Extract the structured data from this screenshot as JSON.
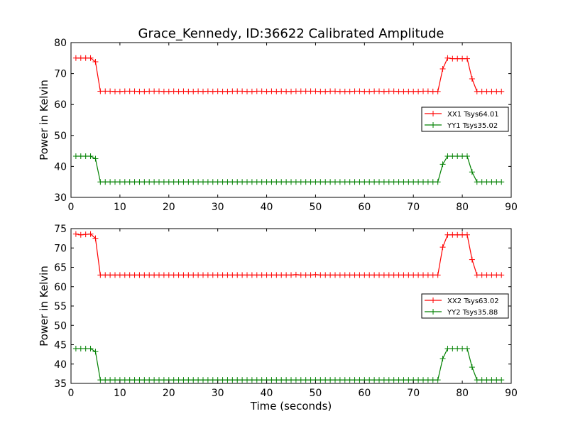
{
  "title": "Grace_Kennedy, ID:36622 Calibrated Amplitude",
  "chart_data": [
    {
      "type": "line",
      "xlabel": "",
      "ylabel": "Power in Kelvin",
      "xlim": [
        0,
        90
      ],
      "ylim": [
        30,
        80
      ],
      "xticks": [
        0,
        10,
        20,
        30,
        40,
        50,
        60,
        70,
        80,
        90
      ],
      "yticks": [
        30,
        40,
        50,
        60,
        70,
        80
      ],
      "grid": false,
      "legend_position": "right",
      "series": [
        {
          "name": "XX1 Tsys64.01",
          "color": "#ff0000",
          "x": [
            1,
            2,
            3,
            4,
            5,
            6,
            7,
            8,
            9,
            10,
            11,
            12,
            13,
            14,
            15,
            16,
            17,
            18,
            19,
            20,
            21,
            22,
            23,
            24,
            25,
            26,
            27,
            28,
            29,
            30,
            31,
            32,
            33,
            34,
            35,
            36,
            37,
            38,
            39,
            40,
            41,
            42,
            43,
            44,
            45,
            46,
            47,
            48,
            49,
            50,
            51,
            52,
            53,
            54,
            55,
            56,
            57,
            58,
            59,
            60,
            61,
            62,
            63,
            64,
            65,
            66,
            67,
            68,
            69,
            70,
            71,
            72,
            73,
            74,
            75,
            76,
            77,
            78,
            79,
            80,
            81,
            82,
            83,
            84,
            85,
            86,
            87,
            88
          ],
          "y": [
            75.0,
            75.0,
            75.0,
            75.0,
            73.8,
            64.3,
            64.3,
            64.3,
            64.2,
            64.2,
            64.3,
            64.3,
            64.3,
            64.2,
            64.2,
            64.3,
            64.3,
            64.3,
            64.2,
            64.2,
            64.3,
            64.2,
            64.3,
            64.2,
            64.2,
            64.3,
            64.2,
            64.3,
            64.2,
            64.3,
            64.2,
            64.2,
            64.3,
            64.3,
            64.3,
            64.2,
            64.2,
            64.3,
            64.3,
            64.2,
            64.3,
            64.2,
            64.3,
            64.2,
            64.2,
            64.3,
            64.3,
            64.3,
            64.3,
            64.3,
            64.2,
            64.2,
            64.3,
            64.3,
            64.2,
            64.2,
            64.2,
            64.3,
            64.3,
            64.2,
            64.2,
            64.3,
            64.3,
            64.2,
            64.3,
            64.3,
            64.2,
            64.2,
            64.2,
            64.2,
            64.2,
            64.3,
            64.3,
            64.2,
            64.2,
            71.5,
            75.0,
            74.8,
            74.8,
            74.8,
            74.8,
            68.3,
            64.2,
            64.2,
            64.2,
            64.2,
            64.2,
            64.2
          ]
        },
        {
          "name": "YY1 Tsys35.02",
          "color": "#008000",
          "x": [
            1,
            2,
            3,
            4,
            5,
            6,
            7,
            8,
            9,
            10,
            11,
            12,
            13,
            14,
            15,
            16,
            17,
            18,
            19,
            20,
            21,
            22,
            23,
            24,
            25,
            26,
            27,
            28,
            29,
            30,
            31,
            32,
            33,
            34,
            35,
            36,
            37,
            38,
            39,
            40,
            41,
            42,
            43,
            44,
            45,
            46,
            47,
            48,
            49,
            50,
            51,
            52,
            53,
            54,
            55,
            56,
            57,
            58,
            59,
            60,
            61,
            62,
            63,
            64,
            65,
            66,
            67,
            68,
            69,
            70,
            71,
            72,
            73,
            74,
            75,
            76,
            77,
            78,
            79,
            80,
            81,
            82,
            83,
            84,
            85,
            86,
            87,
            88
          ],
          "y": [
            43.3,
            43.3,
            43.3,
            43.3,
            42.5,
            35.0,
            35.0,
            35.0,
            35.0,
            35.0,
            35.0,
            35.0,
            35.0,
            35.0,
            35.0,
            35.0,
            35.0,
            35.0,
            35.0,
            35.0,
            35.0,
            35.0,
            35.0,
            35.0,
            35.0,
            35.0,
            35.0,
            35.0,
            35.0,
            35.0,
            35.0,
            35.0,
            35.0,
            35.0,
            35.0,
            35.0,
            35.0,
            35.0,
            35.0,
            35.0,
            35.0,
            35.0,
            35.0,
            35.0,
            35.0,
            35.0,
            35.0,
            35.0,
            35.0,
            35.0,
            35.0,
            35.0,
            35.0,
            35.0,
            35.0,
            35.0,
            35.0,
            35.0,
            35.0,
            35.0,
            35.0,
            35.0,
            35.0,
            35.0,
            35.0,
            35.0,
            35.0,
            35.0,
            35.0,
            35.0,
            35.0,
            35.0,
            35.0,
            35.0,
            35.0,
            40.7,
            43.3,
            43.3,
            43.3,
            43.3,
            43.3,
            38.2,
            35.0,
            35.0,
            35.0,
            35.0,
            35.0,
            35.0
          ]
        }
      ]
    },
    {
      "type": "line",
      "xlabel": "Time (seconds)",
      "ylabel": "Power in Kelvin",
      "xlim": [
        0,
        90
      ],
      "ylim": [
        35,
        75
      ],
      "xticks": [
        0,
        10,
        20,
        30,
        40,
        50,
        60,
        70,
        80,
        90
      ],
      "yticks": [
        35,
        40,
        45,
        50,
        55,
        60,
        65,
        70,
        75
      ],
      "grid": false,
      "legend_position": "right",
      "series": [
        {
          "name": "XX2 Tsys63.02",
          "color": "#ff0000",
          "x": [
            1,
            2,
            3,
            4,
            5,
            6,
            7,
            8,
            9,
            10,
            11,
            12,
            13,
            14,
            15,
            16,
            17,
            18,
            19,
            20,
            21,
            22,
            23,
            24,
            25,
            26,
            27,
            28,
            29,
            30,
            31,
            32,
            33,
            34,
            35,
            36,
            37,
            38,
            39,
            40,
            41,
            42,
            43,
            44,
            45,
            46,
            47,
            48,
            49,
            50,
            51,
            52,
            53,
            54,
            55,
            56,
            57,
            58,
            59,
            60,
            61,
            62,
            63,
            64,
            65,
            66,
            67,
            68,
            69,
            70,
            71,
            72,
            73,
            74,
            75,
            76,
            77,
            78,
            79,
            80,
            81,
            82,
            83,
            84,
            85,
            86,
            87,
            88
          ],
          "y": [
            73.6,
            73.4,
            73.5,
            73.6,
            72.5,
            63.0,
            63.0,
            63.0,
            63.0,
            63.0,
            63.0,
            63.0,
            63.0,
            63.0,
            63.0,
            63.0,
            63.0,
            63.0,
            63.0,
            63.0,
            63.0,
            63.0,
            63.0,
            63.0,
            63.0,
            63.0,
            63.0,
            63.0,
            63.0,
            63.0,
            63.0,
            63.0,
            63.0,
            63.0,
            63.0,
            63.0,
            63.0,
            63.0,
            63.0,
            63.0,
            63.0,
            63.0,
            63.0,
            63.0,
            63.0,
            63.1,
            63.0,
            63.0,
            63.0,
            63.1,
            63.0,
            63.0,
            63.0,
            63.0,
            63.0,
            63.0,
            63.0,
            63.0,
            63.0,
            63.0,
            63.0,
            63.0,
            63.0,
            63.0,
            63.0,
            63.0,
            63.0,
            63.0,
            63.0,
            63.0,
            63.0,
            63.0,
            63.0,
            63.0,
            63.0,
            70.2,
            73.4,
            73.4,
            73.4,
            73.4,
            73.4,
            67.0,
            63.0,
            63.0,
            63.0,
            63.0,
            63.0,
            63.0
          ]
        },
        {
          "name": "YY2 Tsys35.88",
          "color": "#008000",
          "x": [
            1,
            2,
            3,
            4,
            5,
            6,
            7,
            8,
            9,
            10,
            11,
            12,
            13,
            14,
            15,
            16,
            17,
            18,
            19,
            20,
            21,
            22,
            23,
            24,
            25,
            26,
            27,
            28,
            29,
            30,
            31,
            32,
            33,
            34,
            35,
            36,
            37,
            38,
            39,
            40,
            41,
            42,
            43,
            44,
            45,
            46,
            47,
            48,
            49,
            50,
            51,
            52,
            53,
            54,
            55,
            56,
            57,
            58,
            59,
            60,
            61,
            62,
            63,
            64,
            65,
            66,
            67,
            68,
            69,
            70,
            71,
            72,
            73,
            74,
            75,
            76,
            77,
            78,
            79,
            80,
            81,
            82,
            83,
            84,
            85,
            86,
            87,
            88
          ],
          "y": [
            44.0,
            44.0,
            44.0,
            44.0,
            43.2,
            35.9,
            35.9,
            35.9,
            35.9,
            35.9,
            35.9,
            35.9,
            35.9,
            35.9,
            35.9,
            35.9,
            35.9,
            35.9,
            35.9,
            35.9,
            35.9,
            35.9,
            35.9,
            35.9,
            35.9,
            35.9,
            35.9,
            35.9,
            35.9,
            35.9,
            35.9,
            35.9,
            35.9,
            35.9,
            35.9,
            35.9,
            35.9,
            35.9,
            35.9,
            35.9,
            35.9,
            35.9,
            35.9,
            35.9,
            35.9,
            35.9,
            35.9,
            35.9,
            35.9,
            35.9,
            35.9,
            35.9,
            35.9,
            35.9,
            35.9,
            35.9,
            35.9,
            35.9,
            35.9,
            35.9,
            35.9,
            35.9,
            35.9,
            35.9,
            35.9,
            35.9,
            35.9,
            35.9,
            35.9,
            35.9,
            35.9,
            35.9,
            35.9,
            35.9,
            35.9,
            41.4,
            44.0,
            44.0,
            44.0,
            44.0,
            44.0,
            39.2,
            35.9,
            35.9,
            35.9,
            35.9,
            35.9,
            35.9
          ]
        }
      ]
    }
  ]
}
